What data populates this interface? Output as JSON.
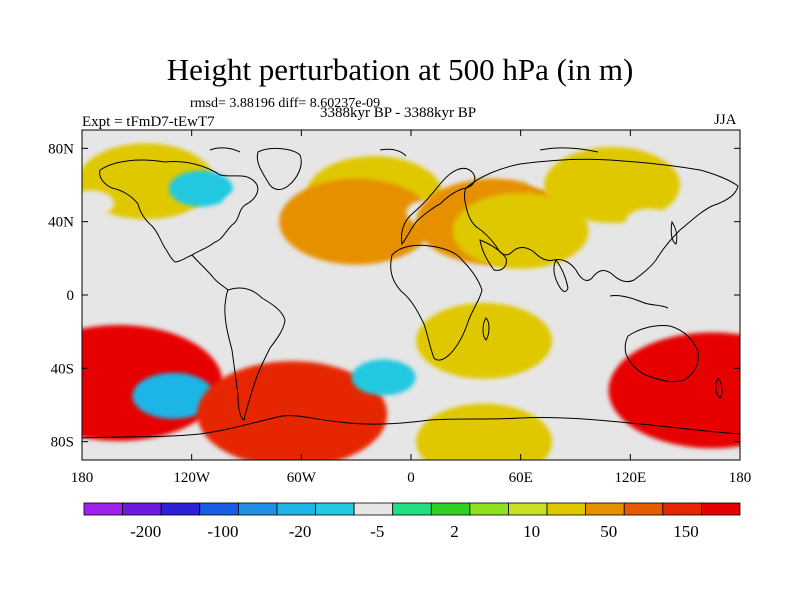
{
  "title": "Height perturbation at 500 hPa (in m)",
  "stats": "rmsd= 3.88196 diff= 8.60237e-09",
  "left_label": "Expt = tFmD7-tEwT7",
  "center_label": "3388kyr BP - 3388kyr BP",
  "right_label": "JJA",
  "map": {
    "ocean_color": "#e6e6e6",
    "coast_color": "#000000",
    "x_ticks": [
      "180",
      "120W",
      "60W",
      "0",
      "60E",
      "120E",
      "180"
    ],
    "x_tick_lons": [
      -180,
      -120,
      -60,
      0,
      60,
      120,
      180
    ],
    "y_ticks": [
      "80N",
      "40N",
      "0",
      "40S",
      "80S"
    ],
    "y_tick_lats": [
      80,
      40,
      0,
      -40,
      -80
    ],
    "lon_range": [
      -180,
      180
    ],
    "lat_range": [
      -90,
      90
    ],
    "anomalies": [
      {
        "lon": -155,
        "lat": 58,
        "level": 1
      },
      {
        "lon": -145,
        "lat": 62,
        "level": 5
      },
      {
        "lon": -175,
        "lat": 50,
        "level": 0
      },
      {
        "lon": -105,
        "lat": 55,
        "level": 0
      },
      {
        "lon": -115,
        "lat": 58,
        "level": -1
      },
      {
        "lon": -90,
        "lat": 50,
        "level": 0
      },
      {
        "lon": -20,
        "lat": 55,
        "level": 5
      },
      {
        "lon": -30,
        "lat": 40,
        "level": 6
      },
      {
        "lon": 10,
        "lat": 45,
        "level": 0
      },
      {
        "lon": 45,
        "lat": 40,
        "level": 6
      },
      {
        "lon": 60,
        "lat": 35,
        "level": 5
      },
      {
        "lon": 75,
        "lat": 65,
        "level": 0
      },
      {
        "lon": 110,
        "lat": 60,
        "level": 5
      },
      {
        "lon": 130,
        "lat": 40,
        "level": 0
      },
      {
        "lon": 165,
        "lat": 58,
        "level": 0
      },
      {
        "lon": -160,
        "lat": -48,
        "level": 9
      },
      {
        "lon": -130,
        "lat": -55,
        "level": -2
      },
      {
        "lon": -65,
        "lat": -65,
        "level": 8
      },
      {
        "lon": -15,
        "lat": -45,
        "level": -1
      },
      {
        "lon": 20,
        "lat": -35,
        "level": 0
      },
      {
        "lon": 40,
        "lat": -25,
        "level": 5
      },
      {
        "lon": 75,
        "lat": -55,
        "level": 0
      },
      {
        "lon": 95,
        "lat": -40,
        "level": 0
      },
      {
        "lon": 165,
        "lat": -52,
        "level": 9
      },
      {
        "lon": 0,
        "lat": -80,
        "level": 0
      },
      {
        "lon": 40,
        "lat": -80,
        "level": 5
      }
    ]
  },
  "colorbar": {
    "colors": [
      "#a020f0",
      "#6a1be0",
      "#2c20d8",
      "#1a5ee6",
      "#1e90e6",
      "#1eb5e6",
      "#20c8e0",
      "#e6e6e6",
      "#20e080",
      "#30d020",
      "#90e020",
      "#c8e020",
      "#e0c800",
      "#e69000",
      "#e65a00",
      "#e62800",
      "#e60000"
    ],
    "labels": [
      "-200",
      "-100",
      "-20",
      "-5",
      "2",
      "10",
      "50",
      "150"
    ]
  }
}
